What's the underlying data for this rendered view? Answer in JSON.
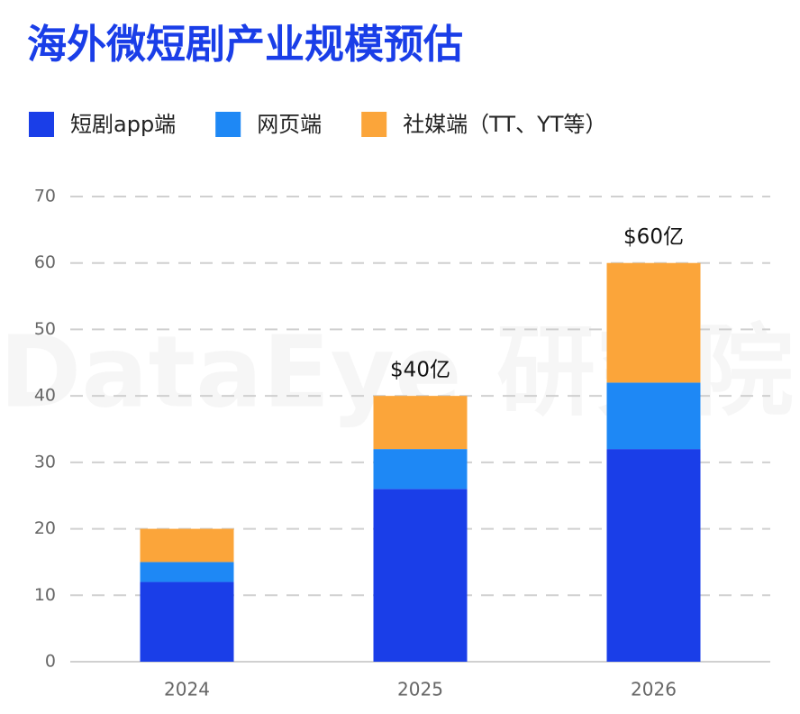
{
  "chart_data": {
    "type": "stacked_bar",
    "title": "海外微短剧产业规模预估",
    "watermark": "DataEye 研究院",
    "categories": [
      "2024",
      "2025",
      "2026"
    ],
    "series": [
      {
        "name": "短剧app端",
        "color": "#1a3ee8",
        "values": [
          12,
          26,
          32
        ]
      },
      {
        "name": "网页端",
        "color": "#1e88f5",
        "values": [
          3,
          6,
          10
        ]
      },
      {
        "name": "社媒端（TT、YT等）",
        "color": "#fba53a",
        "values": [
          5,
          8,
          18
        ]
      }
    ],
    "totals": {
      "values": [
        null,
        40,
        60
      ],
      "value_labels": [
        null,
        "$40亿",
        "$60亿"
      ]
    },
    "ylim": [
      0,
      70
    ],
    "yticks": [
      0,
      10,
      20,
      30,
      40,
      50,
      60,
      70
    ],
    "grid": true,
    "legend": "top-left"
  }
}
